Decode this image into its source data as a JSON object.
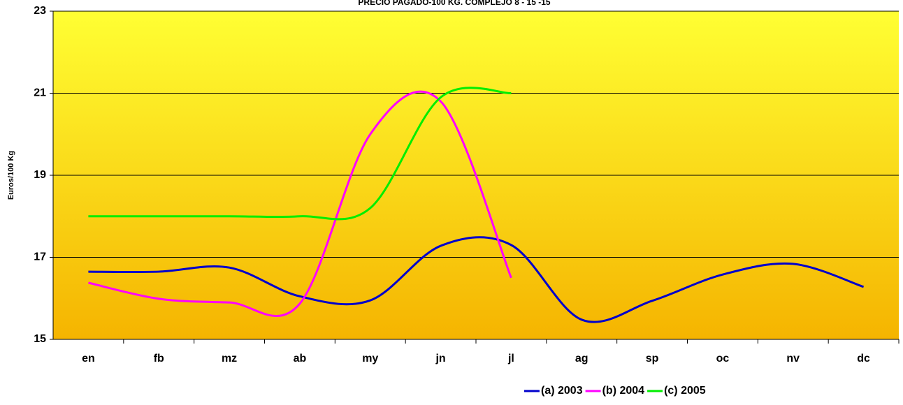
{
  "chart_data": {
    "type": "line",
    "title": "PRECIO PAGADO-100 KG. COMPLEJO  8 - 15 -15",
    "y_label": "Euros/100 Kg",
    "categories": [
      "en",
      "fb",
      "mz",
      "ab",
      "my",
      "jn",
      "jl",
      "ag",
      "sp",
      "oc",
      "nv",
      "dc"
    ],
    "series": [
      {
        "name": "(a) 2003",
        "color": "#0000cc",
        "values": [
          16.65,
          16.65,
          16.75,
          16.05,
          15.95,
          17.28,
          17.3,
          15.48,
          15.94,
          16.58,
          16.84,
          16.28
        ]
      },
      {
        "name": "(b) 2004",
        "color": "#ff00ff",
        "values": [
          16.38,
          15.99,
          15.9,
          15.87,
          20.0,
          20.8,
          16.5,
          null,
          null,
          null,
          null,
          null
        ]
      },
      {
        "name": "(c) 2005",
        "color": "#00ee00",
        "values": [
          18,
          18,
          18,
          18,
          18.2,
          20.9,
          21.0,
          null,
          null,
          null,
          null,
          null
        ]
      }
    ],
    "ylim": [
      15,
      23
    ],
    "yticks": [
      15,
      17,
      19,
      21,
      23
    ],
    "grid": true,
    "legend": "bottom-right"
  }
}
